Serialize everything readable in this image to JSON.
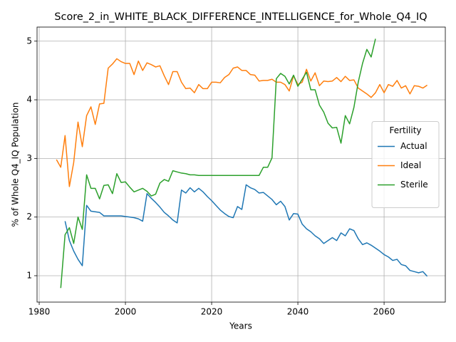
{
  "chart_data": {
    "type": "line",
    "title": "Score_2_in_WHITE_BLACK_DIFFERENCE_INTELLIGENCE_for_Whole_Q4_IQ",
    "xlabel": "Years",
    "ylabel": "% of Whole Q4_IQ Population",
    "legend_title": "Fertility",
    "legend": "center right",
    "grid": true,
    "xlim": [
      1979.5,
      2074.2
    ],
    "xticks": [
      1980,
      2000,
      2020,
      2040,
      2060
    ],
    "ylim": [
      0.55,
      5.24
    ],
    "yticks": [
      1,
      2,
      3,
      4,
      5
    ],
    "x": [
      1984,
      1985,
      1986,
      1987,
      1988,
      1989,
      1990,
      1991,
      1992,
      1993,
      1994,
      1995,
      1996,
      1997,
      1998,
      1999,
      2000,
      2001,
      2002,
      2003,
      2004,
      2005,
      2006,
      2007,
      2008,
      2009,
      2010,
      2011,
      2012,
      2013,
      2014,
      2015,
      2016,
      2017,
      2018,
      2019,
      2020,
      2021,
      2022,
      2023,
      2024,
      2025,
      2026,
      2027,
      2028,
      2029,
      2030,
      2031,
      2032,
      2033,
      2034,
      2035,
      2036,
      2037,
      2038,
      2039,
      2040,
      2041,
      2042,
      2043,
      2044,
      2045,
      2046,
      2047,
      2048,
      2049,
      2050,
      2051,
      2052,
      2053,
      2054,
      2055,
      2056,
      2057,
      2058,
      2059,
      2060,
      2061,
      2062,
      2063,
      2064,
      2065,
      2066,
      2067,
      2068,
      2069,
      2070
    ],
    "series": [
      {
        "name": "Actual",
        "color": "#1f77b4",
        "values": [
          null,
          null,
          1.93,
          1.6,
          1.42,
          1.28,
          1.17,
          2.2,
          2.1,
          2.09,
          2.08,
          2.02,
          2.02,
          2.02,
          2.02,
          2.02,
          2.01,
          2.0,
          1.99,
          1.97,
          1.93,
          2.4,
          2.32,
          2.25,
          2.17,
          2.08,
          2.02,
          1.95,
          1.9,
          2.46,
          2.41,
          2.5,
          2.43,
          2.49,
          2.43,
          2.35,
          2.28,
          2.2,
          2.12,
          2.06,
          2.01,
          1.99,
          2.18,
          2.13,
          2.55,
          2.5,
          2.47,
          2.41,
          2.42,
          2.36,
          2.3,
          2.21,
          2.27,
          2.18,
          1.95,
          2.06,
          2.05,
          1.88,
          1.8,
          1.75,
          1.68,
          1.63,
          1.55,
          1.6,
          1.65,
          1.6,
          1.73,
          1.68,
          1.8,
          1.77,
          1.63,
          1.53,
          1.56,
          1.52,
          1.47,
          1.42,
          1.36,
          1.32,
          1.26,
          1.28,
          1.19,
          1.17,
          1.09,
          1.07,
          1.05,
          1.07,
          0.99
        ]
      },
      {
        "name": "Ideal",
        "color": "#ff7f0e",
        "values": [
          2.98,
          2.85,
          3.39,
          2.52,
          2.93,
          3.62,
          3.2,
          3.73,
          3.88,
          3.58,
          3.93,
          3.94,
          4.54,
          4.61,
          4.7,
          4.65,
          4.62,
          4.62,
          4.43,
          4.66,
          4.5,
          4.63,
          4.6,
          4.56,
          4.58,
          4.41,
          4.26,
          4.48,
          4.48,
          4.3,
          4.19,
          4.2,
          4.12,
          4.26,
          4.19,
          4.19,
          4.3,
          4.3,
          4.29,
          4.38,
          4.43,
          4.54,
          4.56,
          4.5,
          4.5,
          4.43,
          4.42,
          4.32,
          4.33,
          4.33,
          4.35,
          4.3,
          4.3,
          4.26,
          4.15,
          4.41,
          4.26,
          4.3,
          4.52,
          4.32,
          4.46,
          4.24,
          4.32,
          4.31,
          4.32,
          4.38,
          4.31,
          4.4,
          4.33,
          4.34,
          4.2,
          4.15,
          4.1,
          4.04,
          4.12,
          4.26,
          4.12,
          4.26,
          4.23,
          4.33,
          4.2,
          4.24,
          4.1,
          4.24,
          4.23,
          4.2,
          4.25
        ]
      },
      {
        "name": "Sterile",
        "color": "#2ca02c",
        "values": [
          null,
          0.79,
          1.7,
          1.82,
          1.55,
          2.0,
          1.79,
          2.72,
          2.49,
          2.49,
          2.31,
          2.54,
          2.55,
          2.4,
          2.74,
          2.59,
          2.6,
          2.51,
          2.43,
          2.46,
          2.49,
          2.44,
          2.36,
          2.39,
          2.58,
          2.64,
          2.61,
          2.79,
          2.77,
          2.75,
          2.74,
          2.72,
          2.72,
          2.71,
          2.71,
          2.71,
          2.71,
          2.71,
          2.71,
          2.71,
          2.71,
          2.71,
          2.71,
          2.71,
          2.71,
          2.71,
          2.71,
          2.71,
          2.85,
          2.85,
          3.01,
          4.36,
          4.45,
          4.4,
          4.27,
          4.42,
          4.23,
          4.35,
          4.47,
          4.17,
          4.17,
          3.91,
          3.79,
          3.6,
          3.52,
          3.53,
          3.26,
          3.73,
          3.59,
          3.87,
          4.3,
          4.62,
          4.86,
          4.73,
          5.04,
          null,
          null,
          null,
          null,
          null,
          null,
          null,
          null,
          null,
          null,
          null,
          null
        ]
      }
    ]
  }
}
